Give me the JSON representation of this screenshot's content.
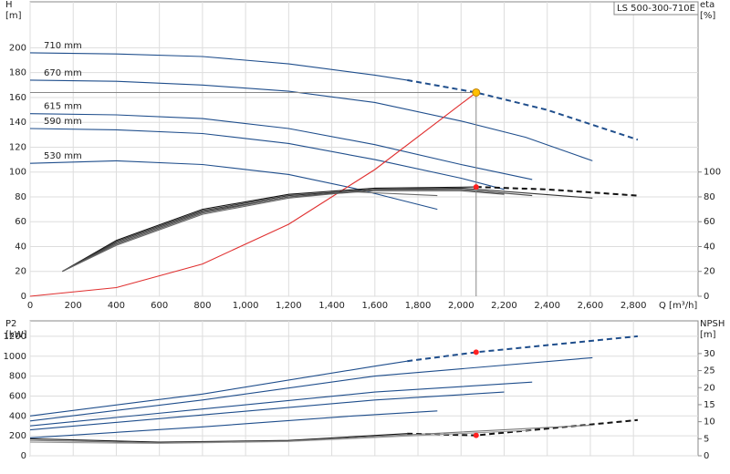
{
  "chart_data": [
    {
      "type": "line",
      "title": "LS 500-300-710E",
      "xlabel": "Q [m³/h]",
      "ylabel": [
        "H",
        "[m]"
      ],
      "y2label": [
        "eta",
        "[%]"
      ],
      "xlim": [
        0,
        3100
      ],
      "ylim": [
        0,
        237
      ],
      "y2lim": [
        0,
        237
      ],
      "grid": true,
      "xtick_labels": true,
      "xticks": [
        0,
        200,
        400,
        600,
        800,
        {
          "value": 1000,
          "label": "1,000"
        },
        {
          "value": 1200,
          "label": "1,200"
        },
        {
          "value": 1400,
          "label": "1,400"
        },
        {
          "value": 1600,
          "label": "1,600"
        },
        {
          "value": 1800,
          "label": "1,800"
        },
        {
          "value": 2000,
          "label": "2,000"
        },
        {
          "value": 2200,
          "label": "2,200"
        },
        {
          "value": 2400,
          "label": "2,400"
        },
        {
          "value": 2600,
          "label": "2,600"
        },
        {
          "value": 2800,
          "label": "2,800"
        }
      ],
      "yticks": [
        0,
        20,
        40,
        60,
        80,
        100,
        120,
        140,
        160,
        180,
        200
      ],
      "y2ticks": [
        0,
        20,
        40,
        60,
        80,
        100
      ],
      "series": [
        {
          "name": "710 mm",
          "color": "#1f4e8c",
          "x": [
            0,
            400,
            800,
            1200,
            1600,
            1750
          ],
          "values": [
            196,
            195,
            193,
            187,
            178,
            174
          ]
        },
        {
          "color": "#1f4e8c",
          "dash": true,
          "x": [
            1750,
            2070,
            2400,
            2820
          ],
          "values": [
            174,
            164,
            150,
            126
          ]
        },
        {
          "name": "670 mm",
          "color": "#1f4e8c",
          "x": [
            0,
            400,
            800,
            1200,
            1600,
            2000,
            2300,
            2610
          ],
          "values": [
            174,
            173,
            170,
            165,
            156,
            141,
            128,
            109
          ]
        },
        {
          "name": "615 mm",
          "color": "#1f4e8c",
          "x": [
            0,
            400,
            800,
            1200,
            1600,
            2000,
            2330
          ],
          "values": [
            147,
            146,
            143,
            135,
            122,
            106,
            94
          ]
        },
        {
          "name": "590 mm",
          "color": "#1f4e8c",
          "x": [
            0,
            400,
            800,
            1200,
            1600,
            2000,
            2200
          ],
          "values": [
            135,
            134,
            131,
            123,
            110,
            95,
            86
          ]
        },
        {
          "name": "530 mm",
          "color": "#1f4e8c",
          "x": [
            0,
            400,
            800,
            1200,
            1500,
            1890
          ],
          "values": [
            107,
            109,
            106,
            98,
            87,
            70
          ]
        },
        {
          "color": "#e03030",
          "x": [
            0,
            400,
            800,
            1200,
            1600,
            2070
          ],
          "values": [
            0,
            7,
            26,
            58,
            102,
            164
          ]
        },
        {
          "color": "#111111",
          "axis": "y2",
          "x": [
            150,
            400,
            800,
            1200,
            1600,
            2070
          ],
          "values": [
            20,
            45,
            70,
            82,
            87,
            88
          ]
        },
        {
          "color": "#111111",
          "axis": "y2",
          "dash": true,
          "x": [
            2070,
            2400,
            2820
          ],
          "values": [
            88,
            86,
            81
          ]
        },
        {
          "color": "#333333",
          "axis": "y2",
          "x": [
            150,
            400,
            800,
            1200,
            1600,
            2000,
            2610
          ],
          "values": [
            20,
            44,
            69,
            81,
            86,
            87,
            79
          ]
        },
        {
          "color": "#444444",
          "axis": "y2",
          "x": [
            150,
            400,
            800,
            1200,
            1600,
            2000,
            2330
          ],
          "values": [
            20,
            43,
            68,
            80,
            86,
            86,
            81
          ]
        },
        {
          "color": "#555555",
          "axis": "y2",
          "x": [
            150,
            400,
            800,
            1200,
            1600,
            2000,
            2200
          ],
          "values": [
            20,
            42,
            67,
            80,
            85,
            85,
            82
          ]
        },
        {
          "color": "#666666",
          "axis": "y2",
          "x": [
            150,
            400,
            800,
            1200,
            1500,
            1890
          ],
          "values": [
            20,
            41,
            66,
            79,
            84,
            81
          ]
        }
      ],
      "points": [
        {
          "x": 2070,
          "y": 164,
          "color": "#ffc000",
          "crosshair": true
        },
        {
          "x": 2070,
          "y": 88,
          "color": "#ff2020",
          "axis": "y2"
        }
      ]
    },
    {
      "type": "line",
      "ylabel": [
        "P2",
        "[kW]"
      ],
      "y2label": [
        "NPSH",
        "[m]"
      ],
      "xlim": [
        0,
        3100
      ],
      "ylim": [
        0,
        1355
      ],
      "y2lim": [
        0,
        39.6
      ],
      "grid": true,
      "xtick_labels": false,
      "xticks": [
        0,
        200,
        400,
        600,
        800,
        1000,
        1200,
        1400,
        1600,
        1800,
        2000,
        2200,
        2400,
        2600,
        2800
      ],
      "yticks": [
        0,
        200,
        400,
        600,
        800,
        1000,
        1200
      ],
      "y2ticks": [
        0,
        5,
        10,
        15,
        20,
        25,
        30
      ],
      "series": [
        {
          "color": "#1f4e8c",
          "x": [
            0,
            800,
            1600,
            1750
          ],
          "values": [
            400,
            620,
            900,
            950
          ]
        },
        {
          "color": "#1f4e8c",
          "dash": true,
          "x": [
            1750,
            2070,
            2820
          ],
          "values": [
            950,
            1040,
            1200
          ]
        },
        {
          "color": "#1f4e8c",
          "x": [
            0,
            800,
            1600,
            2610
          ],
          "values": [
            350,
            560,
            800,
            985
          ]
        },
        {
          "color": "#1f4e8c",
          "x": [
            0,
            800,
            1600,
            2330
          ],
          "values": [
            300,
            470,
            640,
            740
          ]
        },
        {
          "color": "#1f4e8c",
          "x": [
            0,
            800,
            1600,
            2200
          ],
          "values": [
            260,
            410,
            560,
            640
          ]
        },
        {
          "color": "#1f4e8c",
          "x": [
            0,
            800,
            1500,
            1890
          ],
          "values": [
            180,
            290,
            400,
            450
          ]
        },
        {
          "color": "#111111",
          "axis": "y2",
          "x": [
            0,
            600,
            1200,
            1750
          ],
          "values": [
            5,
            4,
            4.5,
            6.5
          ]
        },
        {
          "color": "#111111",
          "axis": "y2",
          "dash": true,
          "x": [
            1750,
            2070,
            2820
          ],
          "values": [
            6.5,
            6,
            10.5
          ]
        },
        {
          "color": "#777777",
          "axis": "y2",
          "x": [
            0,
            600,
            1200,
            2610
          ],
          "values": [
            4.5,
            3.8,
            4.3,
            9
          ]
        },
        {
          "color": "#999999",
          "axis": "y2",
          "x": [
            0,
            600,
            1200,
            2330
          ],
          "values": [
            4,
            3.6,
            4.2,
            7.5
          ]
        }
      ],
      "points": [
        {
          "x": 2070,
          "y": 1040,
          "color": "#ff2020"
        },
        {
          "x": 2070,
          "y": 6,
          "color": "#ff2020",
          "axis": "y2"
        }
      ]
    }
  ]
}
